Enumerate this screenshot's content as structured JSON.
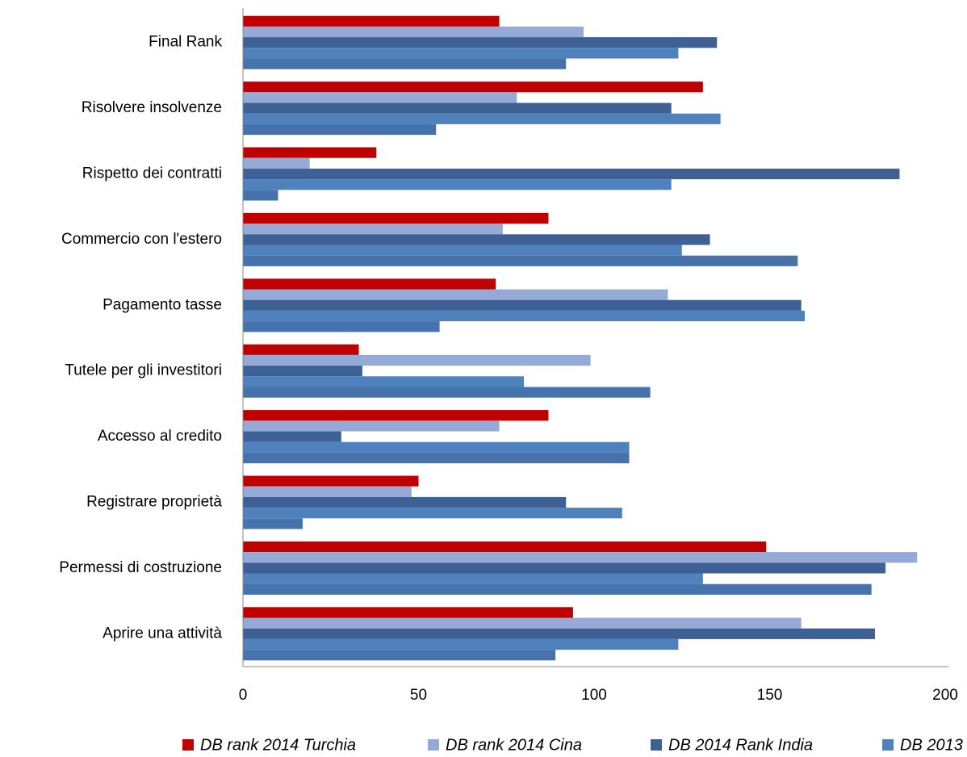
{
  "chart_data": {
    "type": "hbar",
    "categories": [
      "Final Rank",
      "Risolvere insolvenze",
      "Rispetto dei contratti",
      "Commercio con l'estero",
      "Pagamento tasse",
      "Tutele per gli investitori",
      "Accesso al credito",
      "Registrare proprietà",
      "Permessi di costruzione",
      "Aprire una attività"
    ],
    "series": [
      {
        "name": "DB rank 2014 Turchia",
        "color": "#c00000",
        "values": [
          73,
          131,
          38,
          87,
          72,
          33,
          87,
          50,
          149,
          94
        ]
      },
      {
        "name": "DB rank 2014 Cina",
        "color": "#95aad6",
        "values": [
          97,
          78,
          19,
          74,
          121,
          99,
          73,
          48,
          192,
          159
        ]
      },
      {
        "name": "DB 2014 Rank India",
        "color": "#3d6195",
        "values": [
          135,
          122,
          187,
          133,
          159,
          34,
          28,
          92,
          183,
          180
        ]
      },
      {
        "name": "DB 2013",
        "color": "#4f81bd",
        "values": [
          124,
          136,
          122,
          125,
          160,
          80,
          110,
          108,
          131,
          124
        ]
      },
      {
        "name": null,
        "color": "#4673ab",
        "values": [
          92,
          55,
          10,
          158,
          56,
          116,
          110,
          17,
          179,
          89
        ]
      }
    ],
    "xlim": [
      0,
      200
    ],
    "xticks": [
      0,
      50,
      100,
      150,
      200
    ]
  }
}
